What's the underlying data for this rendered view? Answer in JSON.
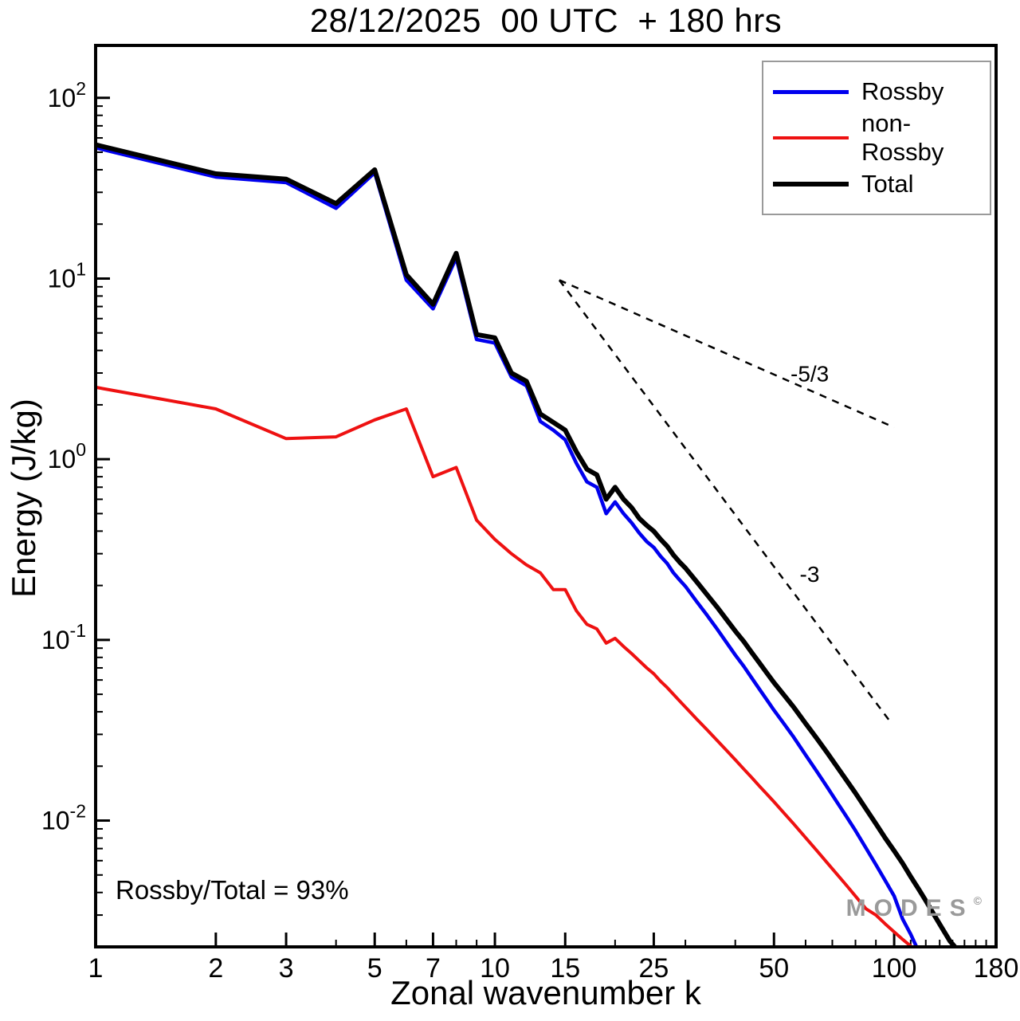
{
  "title": "28/12/2025  00 UTC  + 180 hrs",
  "annotation": {
    "ratio_label": "Rossby/Total = 93%"
  },
  "watermark": {
    "text": "MODES",
    "symbol": "©"
  },
  "chart_data": {
    "type": "line",
    "title": "28/12/2025  00 UTC  + 180 hrs",
    "xlabel": "Zonal wavenumber k",
    "ylabel": "Energy (J/kg)",
    "xscale": "log",
    "yscale": "log",
    "xlim": [
      1,
      180
    ],
    "ylim": [
      0.002,
      195
    ],
    "grid": false,
    "legend_position": "top-right",
    "xticks_labeled": [
      1,
      2,
      3,
      5,
      7,
      10,
      15,
      25,
      50,
      100,
      180
    ],
    "xticks_minor": [
      4,
      6,
      8,
      9,
      20,
      30,
      40,
      60,
      70,
      80,
      90,
      110,
      120,
      130,
      140,
      150,
      160,
      170
    ],
    "ytick_exponents": [
      2,
      1,
      0,
      -1,
      -2
    ],
    "series": [
      {
        "name": "Rossby",
        "color": "#0000ee",
        "width": 4.5,
        "zorder": 2,
        "x": [
          1,
          2,
          3,
          4,
          5,
          6,
          7,
          8,
          9,
          10,
          11,
          12,
          13,
          14,
          15,
          16,
          17,
          18,
          19,
          20,
          21,
          22,
          23,
          24,
          25,
          26,
          27,
          28,
          29,
          30,
          32,
          34,
          36,
          38,
          40,
          42,
          44,
          46,
          48,
          50,
          53,
          56,
          60,
          64,
          68,
          72,
          76,
          80,
          85,
          90,
          95,
          100,
          105,
          110,
          114
        ],
        "y": [
          53,
          36.5,
          34,
          24.5,
          38.5,
          9.8,
          6.8,
          13.0,
          4.6,
          4.4,
          2.85,
          2.55,
          1.62,
          1.45,
          1.28,
          0.95,
          0.75,
          0.7,
          0.5,
          0.58,
          0.5,
          0.445,
          0.39,
          0.35,
          0.325,
          0.29,
          0.265,
          0.235,
          0.215,
          0.198,
          0.163,
          0.137,
          0.115,
          0.097,
          0.0825,
          0.0715,
          0.0615,
          0.0533,
          0.0465,
          0.0408,
          0.0343,
          0.029,
          0.0231,
          0.0187,
          0.0153,
          0.0126,
          0.0105,
          0.0088,
          0.00705,
          0.0057,
          0.00465,
          0.00382,
          0.00285,
          0.00235,
          0.00198
        ]
      },
      {
        "name": "non-Rossby",
        "color": "#ee1111",
        "width": 4,
        "zorder": 1,
        "x": [
          1,
          2,
          3,
          4,
          5,
          6,
          7,
          8,
          9,
          10,
          11,
          12,
          13,
          14,
          15,
          16,
          17,
          18,
          19,
          20,
          21,
          22,
          23,
          24,
          25,
          26,
          27,
          28,
          29,
          30,
          32,
          34,
          36,
          38,
          40,
          42,
          44,
          46,
          48,
          50,
          53,
          56,
          60,
          64,
          68,
          72,
          76,
          80,
          85,
          90,
          95,
          100,
          105,
          110,
          115,
          118
        ],
        "y": [
          2.5,
          1.9,
          1.3,
          1.33,
          1.65,
          1.9,
          0.8,
          0.9,
          0.46,
          0.36,
          0.3,
          0.26,
          0.235,
          0.19,
          0.19,
          0.145,
          0.122,
          0.115,
          0.096,
          0.102,
          0.092,
          0.084,
          0.0765,
          0.07,
          0.065,
          0.059,
          0.0545,
          0.05,
          0.046,
          0.0425,
          0.0365,
          0.0318,
          0.0278,
          0.0245,
          0.0217,
          0.0193,
          0.0173,
          0.0155,
          0.014,
          0.0127,
          0.011,
          0.0096,
          0.00805,
          0.00682,
          0.00583,
          0.00503,
          0.00437,
          0.00382,
          0.00325,
          0.003,
          0.00268,
          0.00242,
          0.0022,
          0.00202,
          0.00188,
          0.0018
        ]
      },
      {
        "name": "Total",
        "color": "#000000",
        "width": 6,
        "zorder": 3,
        "x": [
          1,
          2,
          3,
          4,
          5,
          6,
          7,
          8,
          9,
          10,
          11,
          12,
          13,
          14,
          15,
          16,
          17,
          18,
          19,
          20,
          21,
          22,
          23,
          24,
          25,
          26,
          27,
          28,
          29,
          30,
          32,
          34,
          36,
          38,
          40,
          42,
          44,
          46,
          48,
          50,
          53,
          56,
          60,
          64,
          68,
          72,
          76,
          80,
          85,
          90,
          95,
          100,
          105,
          110,
          115,
          120,
          126,
          132,
          138,
          144,
          150
        ],
        "y": [
          55,
          38,
          35.5,
          26,
          40,
          10.5,
          7.2,
          13.8,
          4.9,
          4.7,
          3.0,
          2.7,
          1.78,
          1.6,
          1.45,
          1.1,
          0.88,
          0.82,
          0.6,
          0.7,
          0.6,
          0.54,
          0.47,
          0.43,
          0.4,
          0.36,
          0.33,
          0.295,
          0.27,
          0.25,
          0.21,
          0.178,
          0.152,
          0.13,
          0.112,
          0.098,
          0.085,
          0.0745,
          0.0655,
          0.058,
          0.0495,
          0.0425,
          0.0345,
          0.0285,
          0.0237,
          0.0198,
          0.0167,
          0.0142,
          0.0116,
          0.0096,
          0.008,
          0.0068,
          0.0058,
          0.0049,
          0.0042,
          0.0036,
          0.003,
          0.00253,
          0.00215,
          0.00193,
          0.00178
        ]
      }
    ],
    "reference_lines": [
      {
        "label": "-5/3",
        "x1": 14.5,
        "y1": 9.8,
        "x2": 100,
        "y2": 1.5,
        "label_x": 55,
        "label_y": 2.7
      },
      {
        "label": "-3",
        "x1": 14.5,
        "y1": 9.8,
        "x2": 98,
        "y2": 0.035,
        "label_x": 58,
        "label_y": 0.21
      }
    ]
  }
}
